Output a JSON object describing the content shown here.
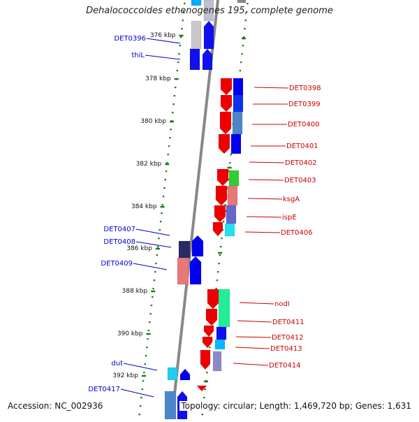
{
  "title": "Dehalococcoides ethenogenes 195, complete genome",
  "footer": {
    "accession": "Accession: NC_002936",
    "summary": "Topology: circular; Length: 1,469,720 bp; Genes: 1,631"
  },
  "ticks": [
    "376 kbp",
    "378 kbp",
    "380 kbp",
    "382 kbp",
    "384 kbp",
    "386 kbp",
    "388 kbp",
    "390 kbp",
    "392 kbp"
  ],
  "left_labels": [
    "DET0396",
    "thiL",
    "DET0407",
    "DET0408",
    "DET0409",
    "dut",
    "DET0417"
  ],
  "right_labels": [
    "DET0398",
    "DET0399",
    "DET0400",
    "DET0401",
    "DET0402",
    "DET0403",
    "ksgA",
    "ispE",
    "DET0406",
    "nodI",
    "DET0411",
    "DET0412",
    "DET0413",
    "DET0414"
  ],
  "colors": {
    "label_left": "#0000cc",
    "label_right": "#cc0000",
    "tick": "#1a7a1a",
    "backbone": "#888888",
    "gene_red": "#ee0000",
    "gene_blue": "#0000ee"
  }
}
